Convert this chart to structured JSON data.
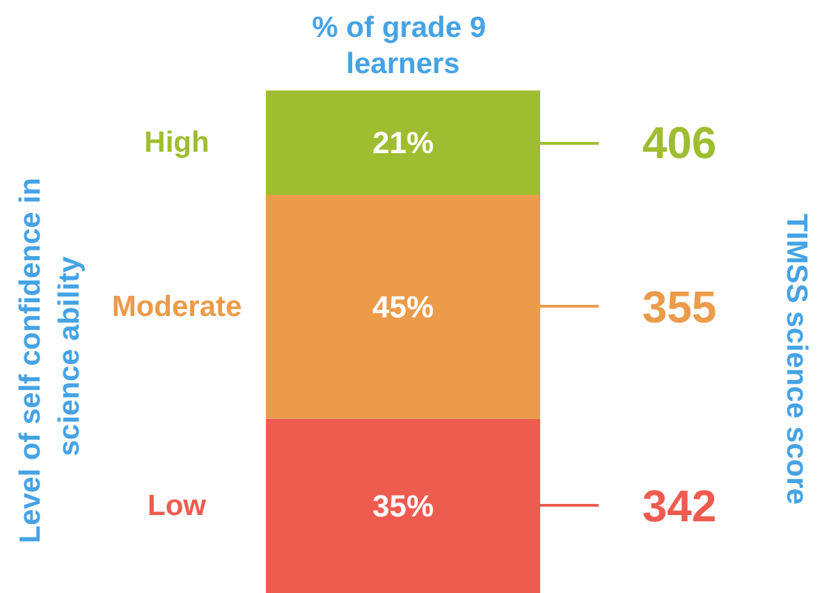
{
  "chart_data": {
    "type": "bar",
    "title": "% of grade 9 learners",
    "categories": [
      null
    ],
    "stacked": true,
    "series": [
      {
        "name": "Low",
        "color": "#ee5b4f",
        "values": [
          35
        ],
        "value_labels": [
          "35%"
        ]
      },
      {
        "name": "Moderate",
        "color": "#eb9b4a",
        "values": [
          45
        ],
        "value_labels": [
          "45%"
        ]
      },
      {
        "name": "High",
        "color": "#9fbd30",
        "values": [
          21
        ],
        "value_labels": [
          "21%"
        ]
      }
    ],
    "ylim": [
      0,
      101
    ],
    "tick_labels": false,
    "legend": false,
    "annotations": [
      "Level of self confidence in science ability",
      "406",
      "355",
      "342",
      "TIMSS science score"
    ]
  }
}
